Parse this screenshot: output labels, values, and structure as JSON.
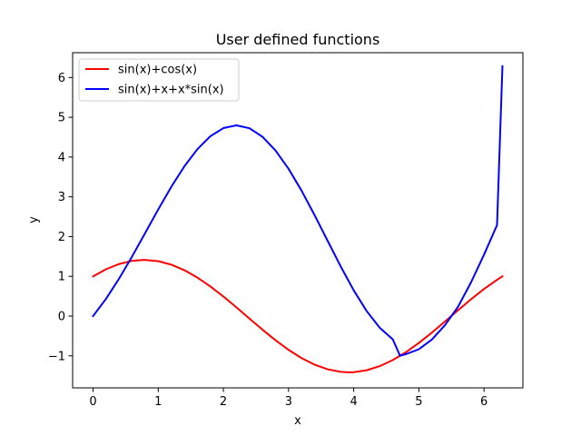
{
  "chart_data": {
    "type": "line",
    "title": "User defined functions",
    "xlabel": "x",
    "ylabel": "y",
    "xlim": [
      -0.314,
      6.597
    ],
    "ylim": [
      -1.805,
      6.625
    ],
    "x_ticks": [
      0,
      1,
      2,
      3,
      4,
      5,
      6
    ],
    "y_ticks": [
      -1,
      0,
      1,
      2,
      3,
      4,
      5,
      6
    ],
    "x_tick_labels": [
      "0",
      "1",
      "2",
      "3",
      "4",
      "5",
      "6"
    ],
    "y_tick_labels": [
      "−1",
      "0",
      "1",
      "2",
      "3",
      "4",
      "5",
      "6"
    ],
    "grid": false,
    "legend_position": "top-left",
    "series": [
      {
        "name": "sin(x)+cos(x)",
        "color": "#ff0000",
        "x": [
          0,
          0.2,
          0.4,
          0.6,
          0.785,
          1.0,
          1.2,
          1.4,
          1.6,
          1.8,
          2.0,
          2.2,
          2.4,
          2.6,
          2.8,
          3.0,
          3.2,
          3.4,
          3.6,
          3.8,
          3.927,
          4.0,
          4.2,
          4.4,
          4.6,
          4.8,
          5.0,
          5.2,
          5.4,
          5.6,
          5.8,
          6.0,
          6.2,
          6.283
        ],
        "y": [
          1.0,
          1.179,
          1.31,
          1.39,
          1.414,
          1.382,
          1.294,
          1.155,
          0.97,
          0.747,
          0.493,
          0.22,
          -0.062,
          -0.341,
          -0.607,
          -0.849,
          -1.057,
          -1.222,
          -1.338,
          -1.402,
          -1.414,
          -1.41,
          -1.362,
          -1.259,
          -1.106,
          -0.909,
          -0.675,
          -0.415,
          -0.138,
          0.145,
          0.422,
          0.681,
          0.913,
          1.0
        ]
      },
      {
        "name": "sin(x)+x+x*sin(x)",
        "color": "#0000ff",
        "x": [
          0,
          0.2,
          0.4,
          0.6,
          0.8,
          1.0,
          1.2,
          1.4,
          1.6,
          1.8,
          2.0,
          2.2,
          2.4,
          2.6,
          2.8,
          3.0,
          3.2,
          3.4,
          3.6,
          3.8,
          4.0,
          4.2,
          4.4,
          4.6,
          4.712,
          4.8,
          5.0,
          5.2,
          5.4,
          5.6,
          5.8,
          6.0,
          6.2,
          6.283
        ],
        "y": [
          0.0,
          0.438,
          0.945,
          1.503,
          2.091,
          2.683,
          3.251,
          3.764,
          4.196,
          4.524,
          4.728,
          4.797,
          4.724,
          4.509,
          4.164,
          3.705,
          3.154,
          2.539,
          1.893,
          1.251,
          0.649,
          0.124,
          -0.294,
          -0.586,
          -0.999,
          -0.957,
          -0.834,
          -0.59,
          -0.231,
          0.231,
          0.845,
          1.544,
          2.289,
          6.283
        ]
      }
    ]
  }
}
